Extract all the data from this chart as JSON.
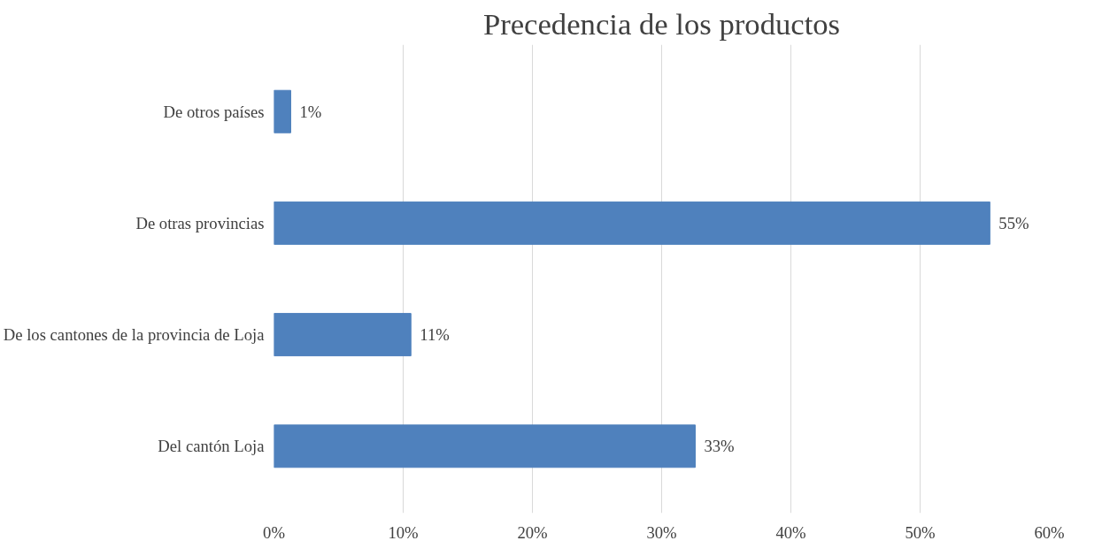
{
  "chart_data": {
    "type": "bar",
    "orientation": "horizontal",
    "title": "Precedencia de los productos",
    "categories": [
      "De otros países",
      "De otras provincias",
      "De los cantones de la provincia de Loja",
      "Del cantón Loja"
    ],
    "values": [
      1.3,
      55.4,
      10.6,
      32.6
    ],
    "value_labels": [
      "1%",
      "55%",
      "11%",
      "33%"
    ],
    "color": "#4f81bd",
    "xlim": [
      0,
      60
    ],
    "xticks": [
      {
        "value": 0,
        "label": "0%"
      },
      {
        "value": 10,
        "label": "10%"
      },
      {
        "value": 20,
        "label": "20%"
      },
      {
        "value": 30,
        "label": "30%"
      },
      {
        "value": 40,
        "label": "40%"
      },
      {
        "value": 50,
        "label": "50%"
      },
      {
        "value": 60,
        "label": "60%"
      }
    ],
    "grid": "x"
  }
}
